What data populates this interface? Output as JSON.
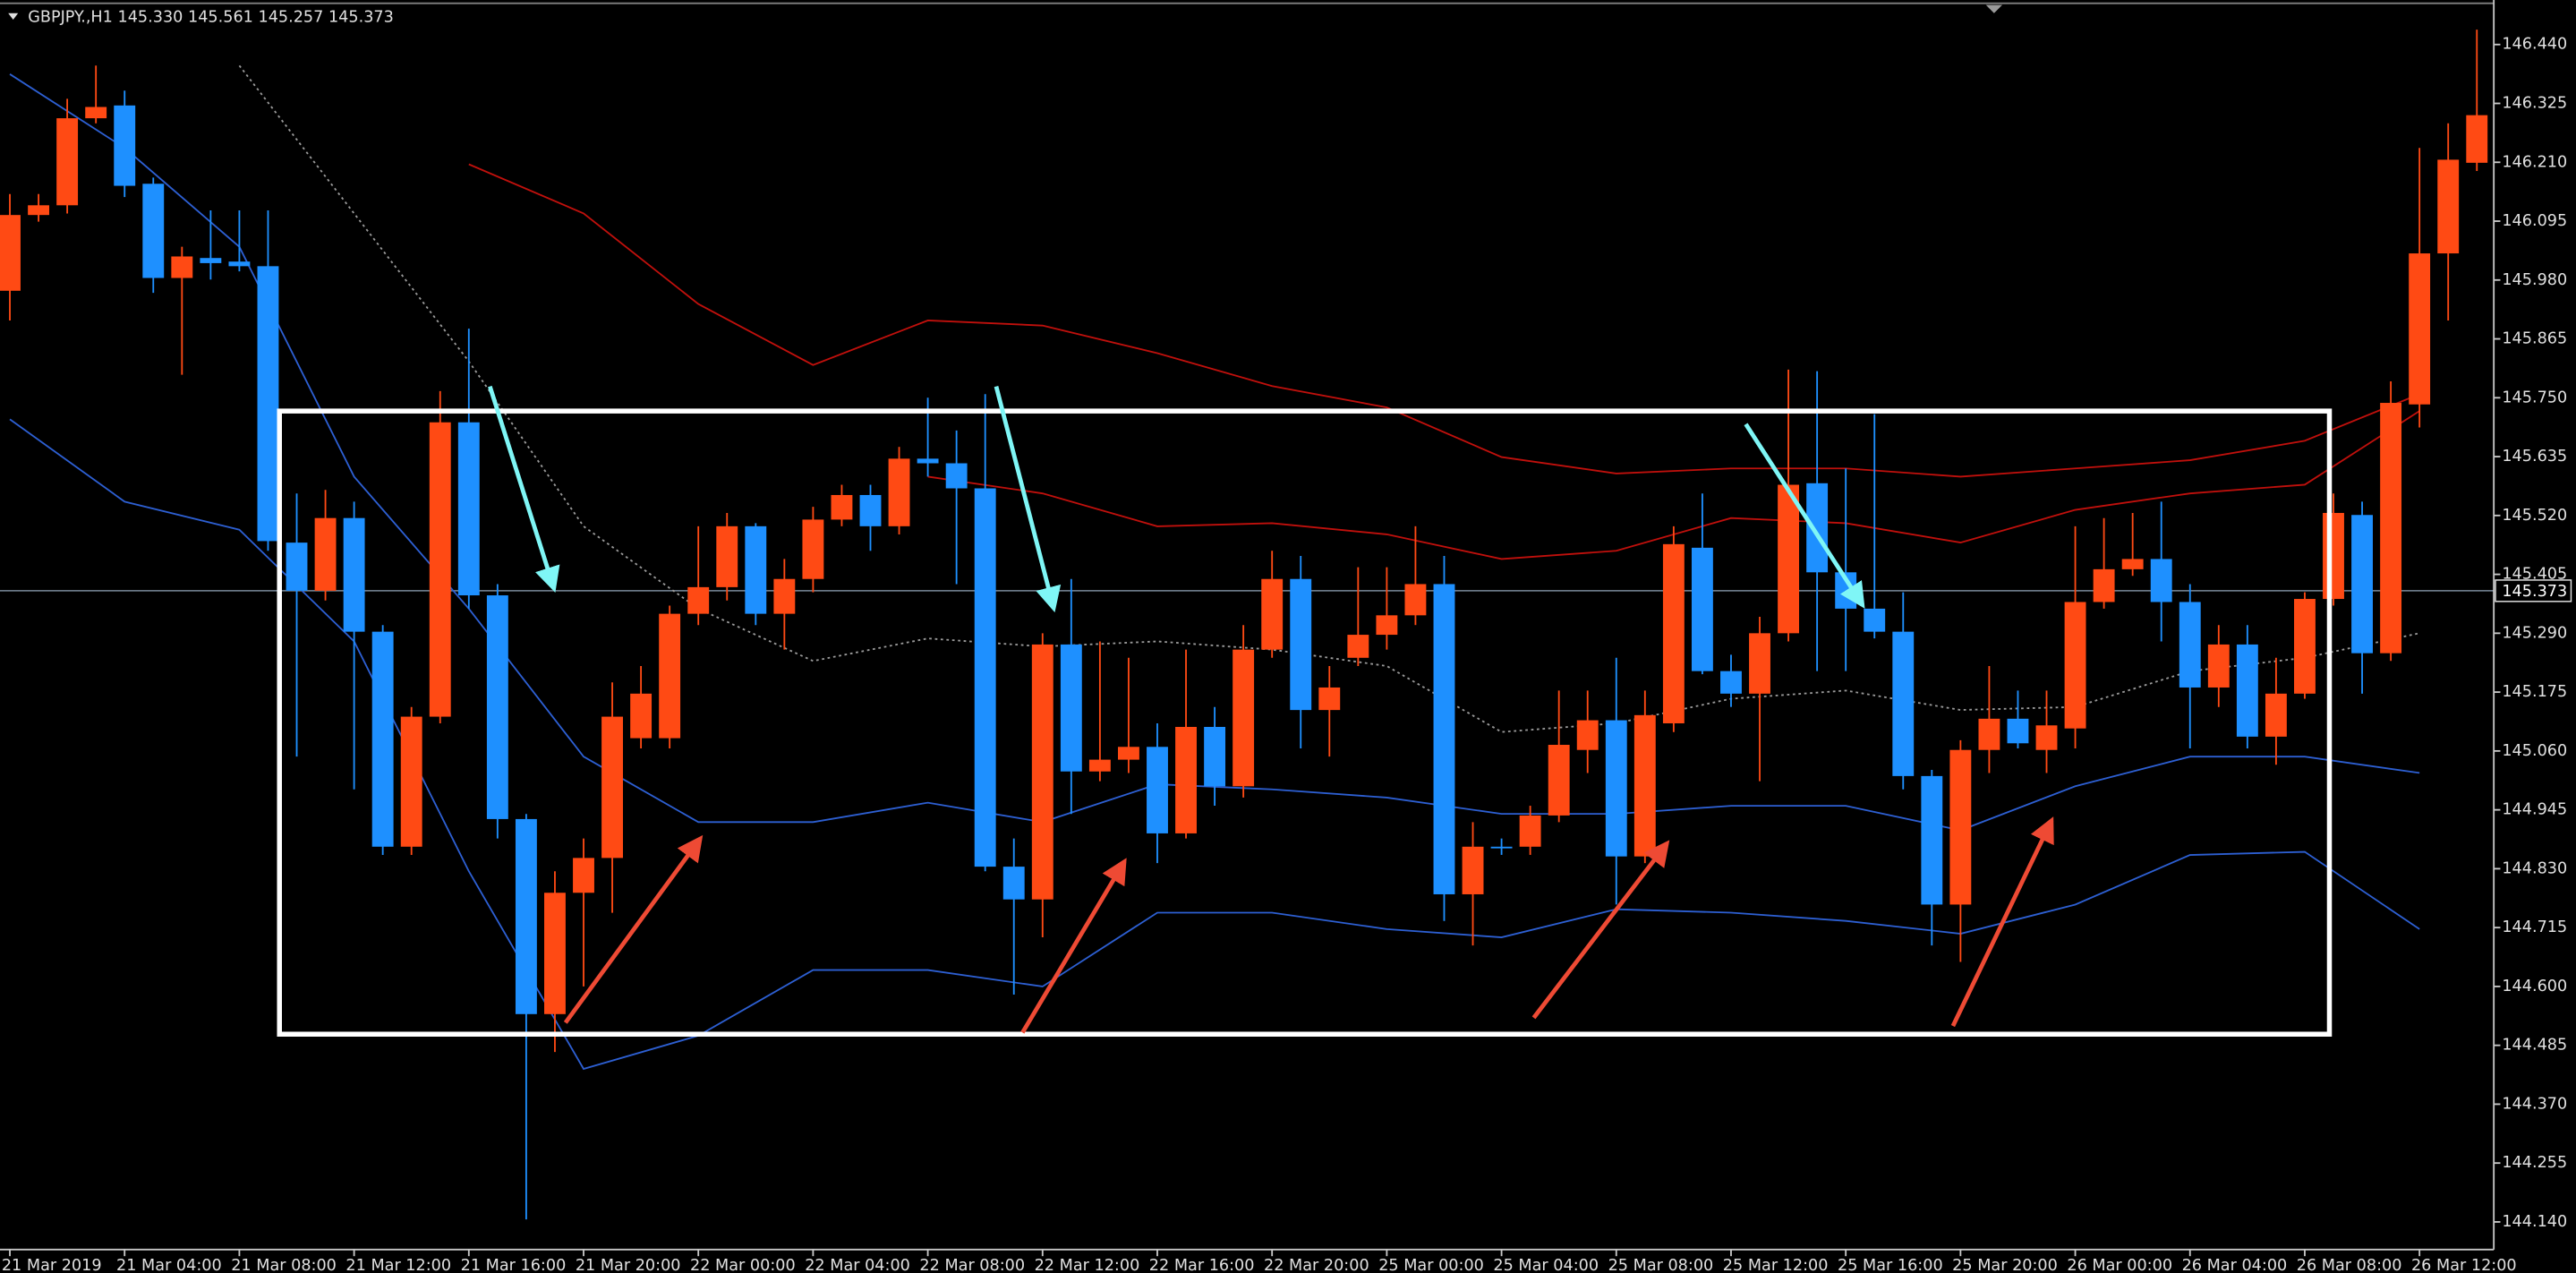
{
  "chart_data": {
    "type": "candlestick",
    "title": "GBPJPY.,H1  145.330 145.561 145.257 145.373",
    "categories": [
      "21 Mar 2019",
      "21 Mar 04:00",
      "21 Mar 08:00",
      "21 Mar 12:00",
      "21 Mar 16:00",
      "21 Mar 20:00",
      "22 Mar 00:00",
      "22 Mar 04:00",
      "22 Mar 08:00",
      "22 Mar 12:00",
      "22 Mar 16:00",
      "22 Mar 20:00",
      "25 Mar 00:00",
      "25 Mar 04:00",
      "25 Mar 08:00",
      "25 Mar 12:00",
      "25 Mar 16:00",
      "25 Mar 20:00",
      "26 Mar 00:00",
      "26 Mar 04:00",
      "26 Mar 08:00",
      "26 Mar 12:00"
    ],
    "candles": {
      "open": [
        145.959,
        146.107,
        146.126,
        146.296,
        146.321,
        146.168,
        145.984,
        146.023,
        146.016,
        146.007,
        145.467,
        145.373,
        145.515,
        145.293,
        144.873,
        145.127,
        145.702,
        145.364,
        144.927,
        144.546,
        144.783,
        144.851,
        145.085,
        145.085,
        145.328,
        145.38,
        145.499,
        145.328,
        145.396,
        145.512,
        145.56,
        145.499,
        145.631,
        145.622,
        145.573,
        144.834,
        144.77,
        145.268,
        145.02,
        145.043,
        145.068,
        144.899,
        145.107,
        144.991,
        145.258,
        145.396,
        145.14,
        145.242,
        145.287,
        145.325,
        145.386,
        144.78,
        144.873,
        144.873,
        144.934,
        145.062,
        145.12,
        144.854,
        145.114,
        145.457,
        145.216,
        145.172,
        145.29,
        145.583,
        145.409,
        145.338,
        145.293,
        145.011,
        144.76,
        145.062,
        145.123,
        145.062,
        145.104,
        145.351,
        145.415,
        145.435,
        145.351,
        145.184,
        145.268,
        145.088,
        145.172,
        145.357,
        145.521,
        145.251,
        145.737,
        146.032,
        146.209
      ],
      "high": [
        146.148,
        146.148,
        146.334,
        146.399,
        146.35,
        146.18,
        146.045,
        146.116,
        146.116,
        146.116,
        145.563,
        145.57,
        145.547,
        145.306,
        145.146,
        145.763,
        145.885,
        145.386,
        144.937,
        144.825,
        144.889,
        145.194,
        145.226,
        145.344,
        145.499,
        145.525,
        145.505,
        145.435,
        145.537,
        145.58,
        145.58,
        145.654,
        145.75,
        145.686,
        145.757,
        144.889,
        145.29,
        145.396,
        145.274,
        145.242,
        145.114,
        145.258,
        145.146,
        145.306,
        145.451,
        145.441,
        145.226,
        145.419,
        145.419,
        145.499,
        145.441,
        144.921,
        144.889,
        144.953,
        145.178,
        145.178,
        145.242,
        145.178,
        145.499,
        145.563,
        145.248,
        145.322,
        145.805,
        145.802,
        145.612,
        145.718,
        145.37,
        145.023,
        145.081,
        145.226,
        145.178,
        145.178,
        145.499,
        145.515,
        145.525,
        145.547,
        145.386,
        145.306,
        145.306,
        145.242,
        145.37,
        145.563,
        145.547,
        145.782,
        146.238,
        146.286,
        146.469
      ],
      "low": [
        145.901,
        146.094,
        146.11,
        146.286,
        146.142,
        145.955,
        145.795,
        145.981,
        145.997,
        145.451,
        145.049,
        145.354,
        144.985,
        144.857,
        144.857,
        145.114,
        145.338,
        144.889,
        144.145,
        144.472,
        144.6,
        144.744,
        145.065,
        145.065,
        145.306,
        145.354,
        145.306,
        145.258,
        145.37,
        145.499,
        145.451,
        145.483,
        145.596,
        145.386,
        144.825,
        144.584,
        144.696,
        144.937,
        145.001,
        145.017,
        144.841,
        144.889,
        144.953,
        144.969,
        145.242,
        145.065,
        145.049,
        145.226,
        145.258,
        145.306,
        144.728,
        144.68,
        144.857,
        144.857,
        144.921,
        145.017,
        144.76,
        144.841,
        145.097,
        145.21,
        145.146,
        145.001,
        145.274,
        145.216,
        145.216,
        145.28,
        144.985,
        144.68,
        144.648,
        145.017,
        145.065,
        145.017,
        145.065,
        145.338,
        145.402,
        145.274,
        145.065,
        145.146,
        145.065,
        145.033,
        145.162,
        145.344,
        145.172,
        145.236,
        145.692,
        145.901,
        146.193
      ],
      "close": [
        146.107,
        146.126,
        146.296,
        146.318,
        146.164,
        145.984,
        146.026,
        146.013,
        146.007,
        145.47,
        145.373,
        145.515,
        145.293,
        144.873,
        145.127,
        145.702,
        145.364,
        144.927,
        144.546,
        144.783,
        144.851,
        145.127,
        145.172,
        145.328,
        145.38,
        145.499,
        145.328,
        145.396,
        145.512,
        145.56,
        145.499,
        145.631,
        145.622,
        145.573,
        144.834,
        144.77,
        145.268,
        145.02,
        145.043,
        145.068,
        144.899,
        145.107,
        144.991,
        145.258,
        145.396,
        145.14,
        145.184,
        145.287,
        145.325,
        145.386,
        144.78,
        144.873,
        144.87,
        144.934,
        145.072,
        145.12,
        144.854,
        145.13,
        145.464,
        145.216,
        145.172,
        145.29,
        145.58,
        145.409,
        145.338,
        145.293,
        145.011,
        144.76,
        145.062,
        145.123,
        145.075,
        145.11,
        145.351,
        145.415,
        145.435,
        145.351,
        145.184,
        145.268,
        145.088,
        145.172,
        145.357,
        145.525,
        145.251,
        145.74,
        146.032,
        146.215,
        146.302
      ]
    },
    "bull_color": "#ff4a14",
    "bear_color": "#1e90ff",
    "indicators": [
      {
        "color": "#2d5fd2",
        "style": "solid",
        "values": [
          146.382,
          146.238,
          146.045,
          145.596,
          145.338,
          145.049,
          144.921,
          144.921,
          144.959,
          144.921,
          144.995,
          144.985,
          144.969,
          144.937,
          144.937,
          144.953,
          144.953,
          144.905,
          144.991,
          145.049,
          145.049,
          145.017
        ]
      },
      {
        "color": "#2d5fd2",
        "style": "solid",
        "values": [
          145.708,
          145.547,
          145.492,
          145.274,
          144.825,
          144.439,
          144.504,
          144.632,
          144.632,
          144.6,
          144.744,
          144.744,
          144.712,
          144.696,
          144.751,
          144.744,
          144.728,
          144.703,
          144.76,
          144.857,
          144.863,
          144.712
        ]
      },
      {
        "color": "#9a9a9a",
        "style": "dotted",
        "values": [
          null,
          null,
          146.399,
          146.11,
          145.821,
          145.499,
          145.338,
          145.236,
          145.28,
          145.264,
          145.274,
          145.258,
          145.226,
          145.097,
          145.114,
          145.162,
          145.178,
          145.14,
          145.146,
          145.216,
          145.242,
          145.29
        ]
      },
      {
        "color": "#c0100c",
        "style": "solid",
        "values": [
          null,
          null,
          null,
          null,
          146.206,
          146.11,
          145.933,
          145.814,
          145.901,
          145.891,
          145.837,
          145.773,
          145.731,
          145.634,
          145.602,
          145.612,
          145.612,
          145.596,
          145.612,
          145.628,
          145.666,
          145.757
        ]
      },
      {
        "color": "#c0100c",
        "style": "solid",
        "values": [
          null,
          null,
          null,
          null,
          null,
          null,
          null,
          null,
          145.596,
          145.563,
          145.499,
          145.505,
          145.483,
          145.435,
          145.451,
          145.515,
          145.505,
          145.467,
          145.531,
          145.563,
          145.58,
          145.724
        ]
      }
    ],
    "current_price": 145.373,
    "ylim": [
      144.086,
      146.527
    ],
    "yticks": [
      {
        "value": 146.44,
        "label": "146.440"
      },
      146.325,
      {
        "value": 146.21,
        "label": "146.210"
      },
      146.095,
      {
        "value": 145.98,
        "label": "145.980"
      },
      145.865,
      {
        "value": 145.75,
        "label": "145.750"
      },
      145.635,
      {
        "value": 145.52,
        "label": "145.520"
      },
      145.405,
      {
        "value": 145.29,
        "label": "145.290"
      },
      145.175,
      {
        "value": 145.06,
        "label": "145.060"
      },
      144.945,
      {
        "value": 144.83,
        "label": "144.830"
      },
      144.715,
      {
        "value": 144.6,
        "label": "144.600"
      },
      144.485,
      {
        "value": 144.37,
        "label": "144.370"
      },
      144.255,
      {
        "value": 144.14,
        "label": "144.140"
      }
    ]
  }
}
